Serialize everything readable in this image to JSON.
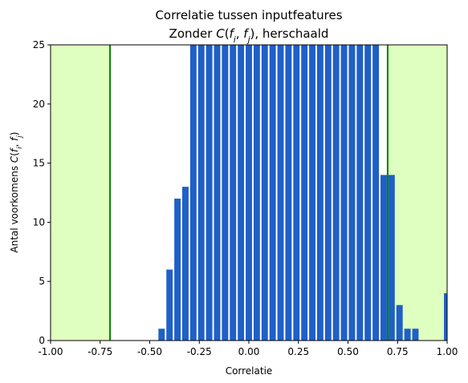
{
  "chart_data": {
    "type": "bar",
    "title_line1": "Correlatie tussen inputfeatures",
    "title_line2": "Zonder C(fi, fj), herschaald",
    "xlabel": "Correlatie",
    "ylabel": "Antal voorkomens C(fi, fj)",
    "xlim": [
      -1.0,
      1.0
    ],
    "ylim": [
      0,
      25
    ],
    "x_ticks": [
      "-1.00",
      "-0.75",
      "-0.50",
      "-0.25",
      "0.00",
      "0.25",
      "0.50",
      "0.75",
      "1.00"
    ],
    "y_ticks": [
      "0",
      "5",
      "10",
      "15",
      "20",
      "25"
    ],
    "bar_color": "#1f5fc8",
    "bar_width": 0.04,
    "x": [
      -0.44,
      -0.4,
      -0.36,
      -0.32,
      -0.28,
      -0.24,
      -0.2,
      -0.16,
      -0.12,
      -0.08,
      -0.04,
      0.0,
      0.04,
      0.08,
      0.12,
      0.16,
      0.2,
      0.24,
      0.28,
      0.32,
      0.36,
      0.4,
      0.44,
      0.48,
      0.52,
      0.56,
      0.6,
      0.64,
      0.68,
      0.72,
      0.76,
      0.8,
      0.84,
      1.0
    ],
    "values": [
      1,
      6,
      12,
      13,
      25,
      25,
      25,
      25,
      25,
      25,
      25,
      25,
      25,
      25,
      25,
      25,
      25,
      25,
      25,
      25,
      25,
      25,
      25,
      25,
      25,
      25,
      25,
      25,
      14,
      14,
      3,
      1,
      1,
      4
    ],
    "shaded_regions": [
      [
        -1.0,
        -0.7
      ],
      [
        0.7,
        1.0
      ]
    ],
    "shade_color": "#dfffc0",
    "threshold_lines": [
      -0.7,
      0.7
    ],
    "threshold_color": "#008000",
    "grid": false
  }
}
